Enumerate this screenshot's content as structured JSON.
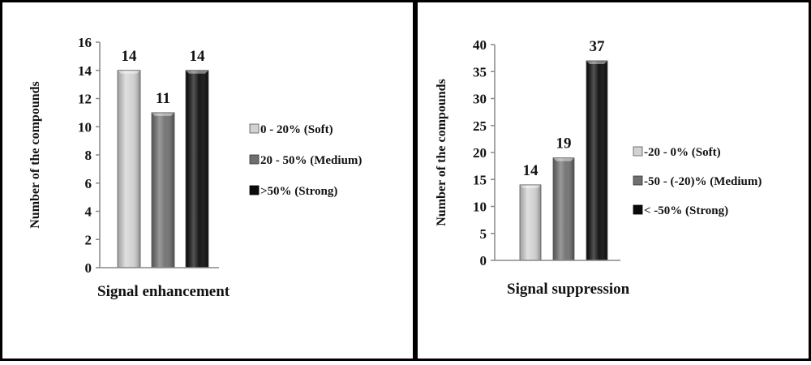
{
  "chart_data": [
    {
      "type": "bar",
      "categories": [
        "0 - 20% (Soft)",
        "20 - 50% (Medium)",
        ">50% (Strong)"
      ],
      "values": [
        14,
        11,
        14
      ],
      "data_labels": [
        "14",
        "11",
        "14"
      ],
      "colors": [
        "#d2d2d2",
        "#6f6f6f",
        "#0a0a0a"
      ],
      "xlabel": "Signal enhancement",
      "ylabel": "Number of the compounds",
      "ylim": [
        0,
        16
      ],
      "yticks": [
        "0",
        "2",
        "4",
        "6",
        "8",
        "10",
        "12",
        "14",
        "16"
      ],
      "grid": false,
      "legend_position": "right"
    },
    {
      "type": "bar",
      "categories": [
        "-20 - 0% (Soft)",
        "-50 - (-20)% (Medium)",
        "< -50% (Strong)"
      ],
      "values": [
        14,
        19,
        37
      ],
      "data_labels": [
        "14",
        "19",
        "37"
      ],
      "colors": [
        "#d2d2d2",
        "#6f6f6f",
        "#0a0a0a"
      ],
      "xlabel": "Signal suppression",
      "ylabel": "Number of the compounds",
      "ylim": [
        0,
        40
      ],
      "yticks": [
        "0",
        "5",
        "10",
        "15",
        "20",
        "25",
        "30",
        "35",
        "40"
      ],
      "grid": false,
      "legend_position": "right"
    }
  ]
}
